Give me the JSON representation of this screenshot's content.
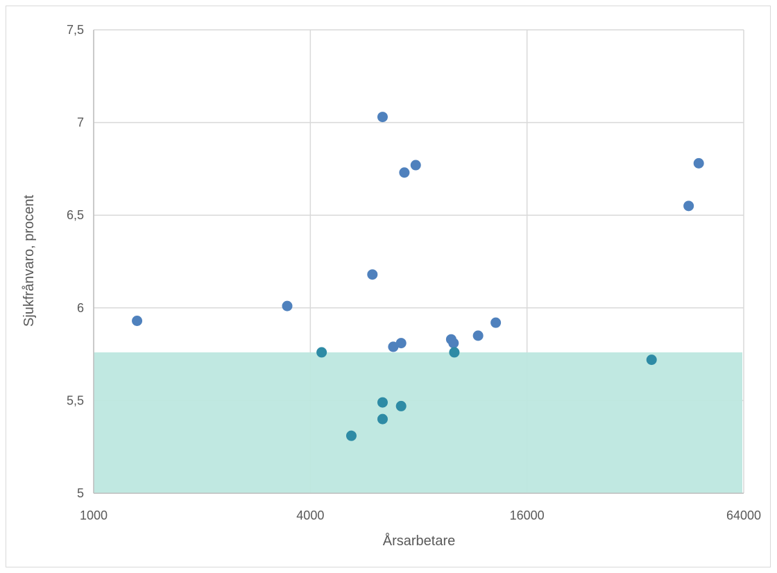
{
  "chart_data": {
    "type": "scatter",
    "xlabel": "Årsarbetare",
    "ylabel": "Sjukfrånvaro, procent",
    "x_scale": "log2",
    "xlim": [
      1000,
      64000
    ],
    "ylim": [
      5,
      7.5
    ],
    "x_ticks": [
      1000,
      4000,
      16000,
      64000
    ],
    "x_tick_labels": [
      "1000",
      "4000",
      "16000",
      "64000"
    ],
    "y_ticks": [
      5,
      5.5,
      6,
      6.5,
      7,
      7.5
    ],
    "y_tick_labels": [
      "5",
      "5,5",
      "6",
      "6,5",
      "7",
      "7,5"
    ],
    "grid": true,
    "shaded_band": {
      "y_from": 5,
      "y_to": 5.76,
      "color": "#bde7df"
    },
    "colors": {
      "above_band": "#4f81bd",
      "in_band": "#2e8ba5",
      "grid": "#d9d9d9",
      "text": "#595959"
    },
    "points": [
      {
        "x": 1320,
        "y": 5.93
      },
      {
        "x": 3450,
        "y": 6.01
      },
      {
        "x": 4300,
        "y": 5.76
      },
      {
        "x": 5200,
        "y": 5.31
      },
      {
        "x": 5950,
        "y": 6.18
      },
      {
        "x": 6350,
        "y": 7.03
      },
      {
        "x": 6350,
        "y": 5.49
      },
      {
        "x": 6350,
        "y": 5.4
      },
      {
        "x": 6800,
        "y": 5.79
      },
      {
        "x": 7150,
        "y": 5.81
      },
      {
        "x": 7150,
        "y": 5.47
      },
      {
        "x": 7300,
        "y": 6.73
      },
      {
        "x": 7850,
        "y": 6.77
      },
      {
        "x": 9850,
        "y": 5.83
      },
      {
        "x": 10000,
        "y": 5.81
      },
      {
        "x": 10050,
        "y": 5.76
      },
      {
        "x": 11700,
        "y": 5.85
      },
      {
        "x": 13100,
        "y": 5.92
      },
      {
        "x": 35500,
        "y": 5.72
      },
      {
        "x": 45000,
        "y": 6.55
      },
      {
        "x": 48000,
        "y": 6.78
      }
    ]
  }
}
